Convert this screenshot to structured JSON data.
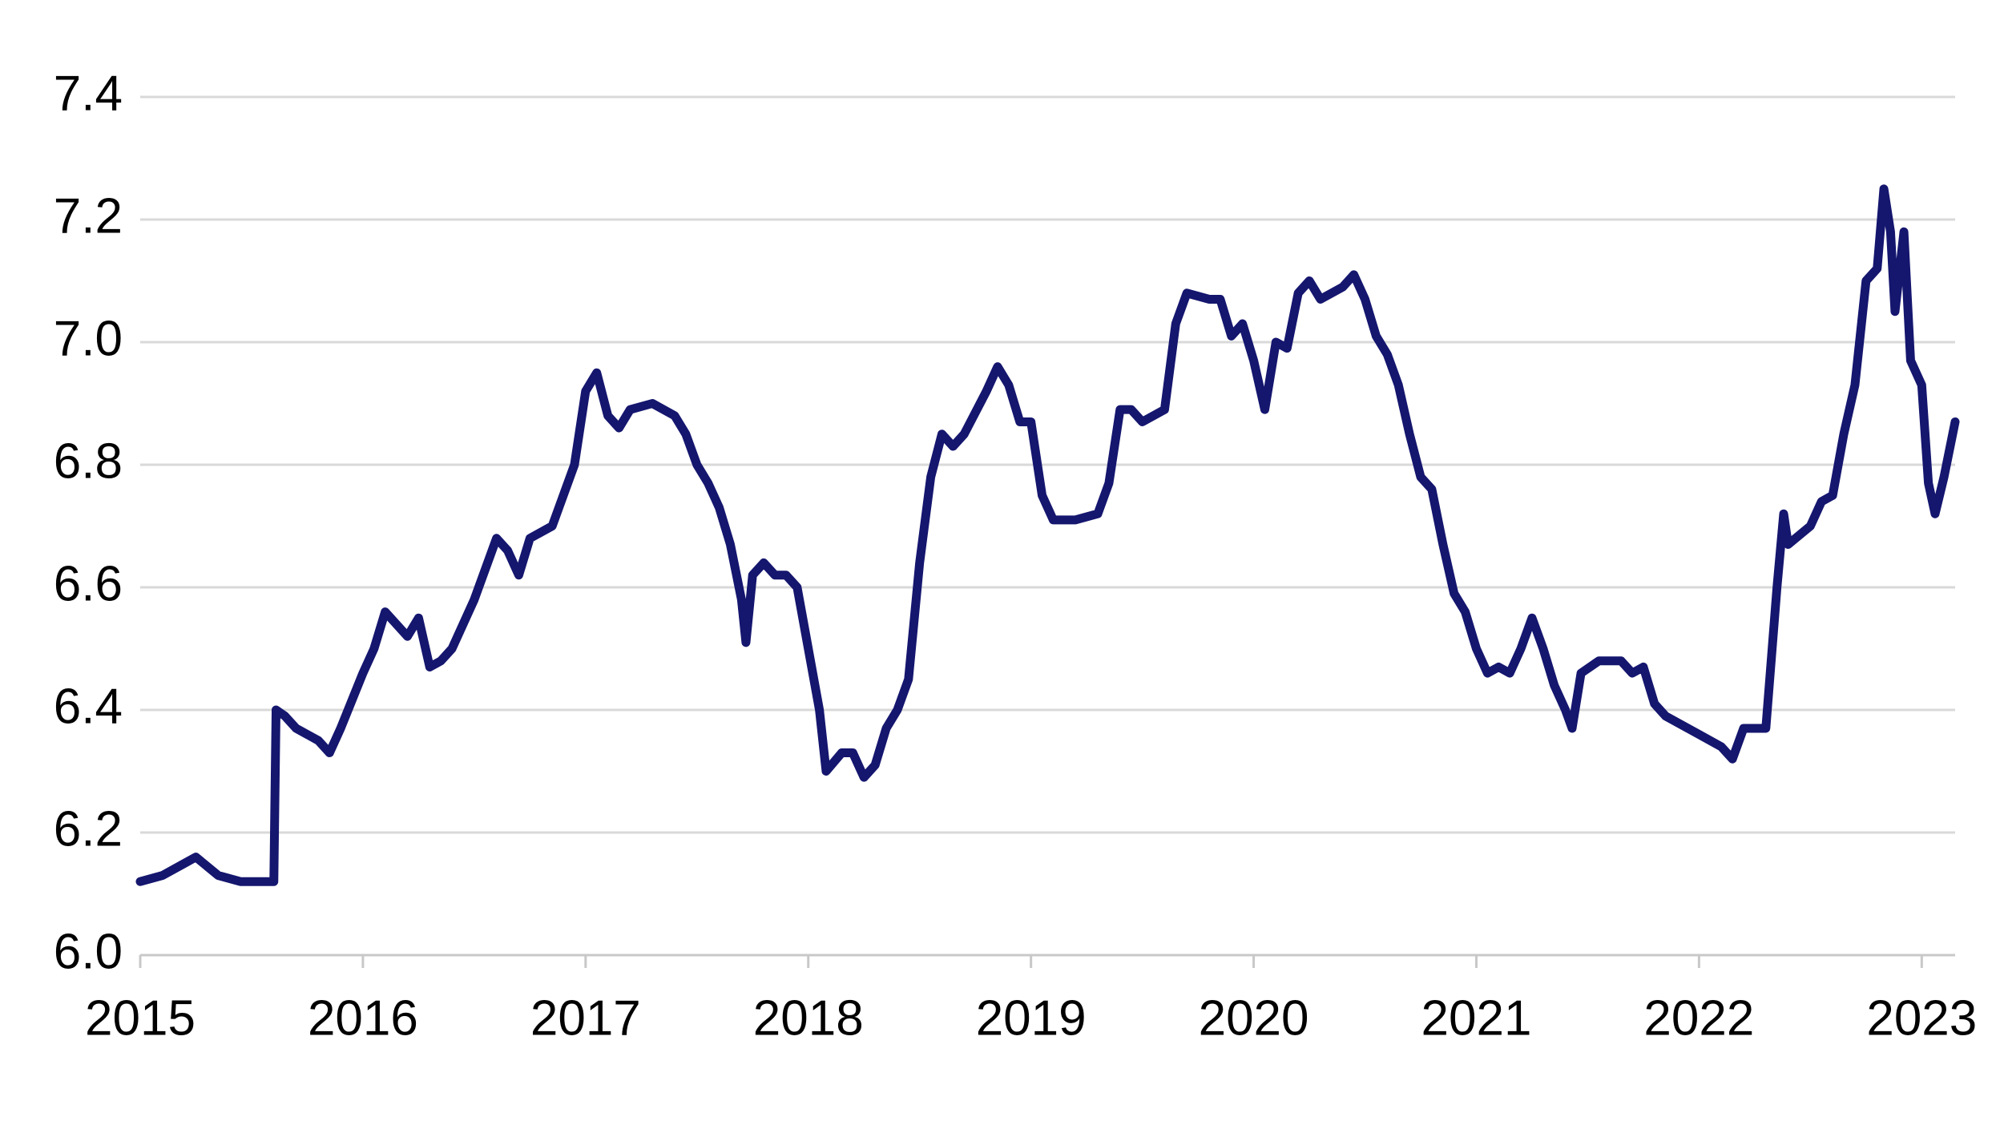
{
  "chart_data": {
    "type": "line",
    "x": [
      2015.0,
      2015.1,
      2015.2,
      2015.25,
      2015.35,
      2015.45,
      2015.6,
      2015.61,
      2015.65,
      2015.7,
      2015.8,
      2015.85,
      2015.9,
      2016.0,
      2016.05,
      2016.1,
      2016.2,
      2016.25,
      2016.3,
      2016.35,
      2016.4,
      2016.5,
      2016.55,
      2016.6,
      2016.65,
      2016.7,
      2016.75,
      2016.85,
      2016.95,
      2017.0,
      2017.05,
      2017.1,
      2017.15,
      2017.2,
      2017.3,
      2017.4,
      2017.45,
      2017.5,
      2017.55,
      2017.6,
      2017.65,
      2017.7,
      2017.72,
      2017.75,
      2017.8,
      2017.85,
      2017.9,
      2017.95,
      2018.0,
      2018.05,
      2018.08,
      2018.15,
      2018.2,
      2018.25,
      2018.3,
      2018.35,
      2018.4,
      2018.45,
      2018.5,
      2018.55,
      2018.6,
      2018.65,
      2018.7,
      2018.8,
      2018.85,
      2018.9,
      2018.95,
      2019.0,
      2019.05,
      2019.1,
      2019.2,
      2019.3,
      2019.35,
      2019.4,
      2019.45,
      2019.5,
      2019.55,
      2019.6,
      2019.65,
      2019.7,
      2019.8,
      2019.85,
      2019.9,
      2019.95,
      2020.0,
      2020.05,
      2020.1,
      2020.15,
      2020.2,
      2020.25,
      2020.3,
      2020.4,
      2020.45,
      2020.5,
      2020.55,
      2020.6,
      2020.65,
      2020.7,
      2020.75,
      2020.8,
      2020.85,
      2020.9,
      2020.95,
      2021.0,
      2021.05,
      2021.1,
      2021.15,
      2021.2,
      2021.25,
      2021.3,
      2021.35,
      2021.4,
      2021.43,
      2021.47,
      2021.55,
      2021.65,
      2021.7,
      2021.75,
      2021.8,
      2021.85,
      2021.9,
      2021.95,
      2022.0,
      2022.1,
      2022.15,
      2022.2,
      2022.3,
      2022.35,
      2022.38,
      2022.4,
      2022.5,
      2022.55,
      2022.6,
      2022.65,
      2022.7,
      2022.75,
      2022.8,
      2022.83,
      2022.86,
      2022.88,
      2022.92,
      2022.95,
      2023.0,
      2023.03,
      2023.06,
      2023.1,
      2023.15
    ],
    "series": [
      {
        "color": "#15166e",
        "values": [
          6.12,
          6.13,
          6.15,
          6.16,
          6.13,
          6.12,
          6.12,
          6.4,
          6.39,
          6.37,
          6.35,
          6.33,
          6.37,
          6.46,
          6.5,
          6.56,
          6.52,
          6.55,
          6.47,
          6.48,
          6.5,
          6.58,
          6.63,
          6.68,
          6.66,
          6.62,
          6.68,
          6.7,
          6.8,
          6.92,
          6.95,
          6.88,
          6.86,
          6.89,
          6.9,
          6.88,
          6.85,
          6.8,
          6.77,
          6.73,
          6.67,
          6.58,
          6.51,
          6.62,
          6.64,
          6.62,
          6.62,
          6.6,
          6.5,
          6.4,
          6.3,
          6.33,
          6.33,
          6.29,
          6.31,
          6.37,
          6.4,
          6.45,
          6.64,
          6.78,
          6.85,
          6.83,
          6.85,
          6.92,
          6.96,
          6.93,
          6.87,
          6.87,
          6.75,
          6.71,
          6.71,
          6.72,
          6.77,
          6.89,
          6.89,
          6.87,
          6.88,
          6.89,
          7.03,
          7.08,
          7.07,
          7.07,
          7.01,
          7.03,
          6.97,
          6.89,
          7.0,
          6.99,
          7.08,
          7.1,
          7.07,
          7.09,
          7.11,
          7.07,
          7.01,
          6.98,
          6.93,
          6.85,
          6.78,
          6.76,
          6.67,
          6.59,
          6.56,
          6.5,
          6.46,
          6.47,
          6.46,
          6.5,
          6.55,
          6.5,
          6.44,
          6.4,
          6.37,
          6.46,
          6.48,
          6.48,
          6.46,
          6.47,
          6.41,
          6.39,
          6.38,
          6.37,
          6.36,
          6.34,
          6.32,
          6.37,
          6.37,
          6.6,
          6.72,
          6.67,
          6.7,
          6.74,
          6.75,
          6.85,
          6.93,
          7.1,
          7.12,
          7.25,
          7.18,
          7.05,
          7.18,
          6.97,
          6.93,
          6.77,
          6.72,
          6.78,
          6.87
        ]
      }
    ],
    "xlim": [
      2015,
      2023.15
    ],
    "xticks": [
      2015,
      2016,
      2017,
      2018,
      2019,
      2020,
      2021,
      2022,
      2023
    ],
    "ylim": [
      6.0,
      7.4
    ],
    "yticks": [
      {
        "value": 6.0,
        "label": "6.0"
      },
      6.2,
      6.4,
      6.6,
      6.8,
      {
        "value": 7.0,
        "label": "7.0"
      },
      7.2,
      7.4
    ],
    "grid": true
  }
}
